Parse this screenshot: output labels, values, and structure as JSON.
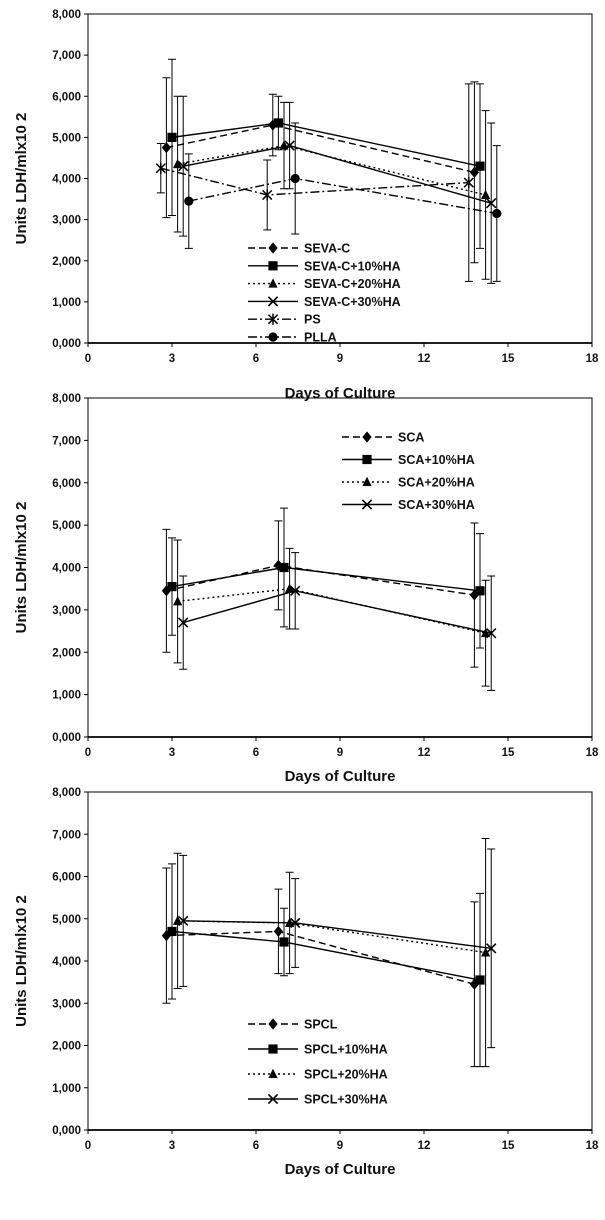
{
  "chart_data": [
    {
      "type": "line",
      "title": "",
      "xlabel": "Days of Culture",
      "ylabel": "Units LDH/mlx10 2",
      "xlim": [
        0,
        18
      ],
      "ylim": [
        0,
        8000
      ],
      "xticks": [
        "0",
        "3",
        "6",
        "9",
        "12",
        "15",
        "18"
      ],
      "yticks": [
        "0,000",
        "1,000",
        "2,000",
        "3,000",
        "4,000",
        "5,000",
        "6,000",
        "7,000",
        "8,000"
      ],
      "legend_position": "bottom-center",
      "series": [
        {
          "name": "SEVA-C",
          "marker": "diamond",
          "dash": "dashed",
          "x": [
            2.8,
            6.6,
            13.8
          ],
          "y": [
            4750,
            5300,
            4150
          ],
          "err": [
            1700,
            750,
            2200
          ]
        },
        {
          "name": "SEVA-C+10%HA",
          "marker": "square",
          "dash": "solid",
          "x": [
            3.0,
            6.8,
            14.0
          ],
          "y": [
            5000,
            5350,
            4300
          ],
          "err": [
            1900,
            650,
            2000
          ]
        },
        {
          "name": "SEVA-C+20%HA",
          "marker": "triangle",
          "dash": "dotted",
          "x": [
            3.2,
            7.0,
            14.2
          ],
          "y": [
            4350,
            4800,
            3600
          ],
          "err": [
            1650,
            1050,
            2050
          ]
        },
        {
          "name": "SEVA-C+30%HA",
          "marker": "x",
          "dash": "solid",
          "x": [
            3.4,
            7.2,
            14.4
          ],
          "y": [
            4300,
            4800,
            3400
          ],
          "err": [
            1700,
            1050,
            1950
          ]
        },
        {
          "name": "PS",
          "marker": "star",
          "dash": "dashdot",
          "x": [
            2.6,
            6.4,
            13.6
          ],
          "y": [
            4250,
            3600,
            3900
          ],
          "err": [
            600,
            850,
            2400
          ]
        },
        {
          "name": "PLLA",
          "marker": "circle",
          "dash": "dashdot",
          "x": [
            3.6,
            7.4,
            14.6
          ],
          "y": [
            3450,
            4000,
            3150
          ],
          "err": [
            1150,
            1350,
            1650
          ]
        }
      ]
    },
    {
      "type": "line",
      "title": "",
      "xlabel": "Days of Culture",
      "ylabel": "Units LDH/mlx10 2",
      "xlim": [
        0,
        18
      ],
      "ylim": [
        0,
        8000
      ],
      "xticks": [
        "0",
        "3",
        "6",
        "9",
        "12",
        "15",
        "18"
      ],
      "yticks": [
        "0,000",
        "1,000",
        "2,000",
        "3,000",
        "4,000",
        "5,000",
        "6,000",
        "7,000",
        "8,000"
      ],
      "legend_position": "top-right",
      "series": [
        {
          "name": "SCA",
          "marker": "diamond",
          "dash": "dashed",
          "x": [
            2.8,
            6.8,
            13.8
          ],
          "y": [
            3450,
            4050,
            3350
          ],
          "err": [
            1450,
            1050,
            1700
          ]
        },
        {
          "name": "SCA+10%HA",
          "marker": "square",
          "dash": "solid",
          "x": [
            3.0,
            7.0,
            14.0
          ],
          "y": [
            3550,
            4000,
            3450
          ],
          "err": [
            1150,
            1400,
            1350
          ]
        },
        {
          "name": "SCA+20%HA",
          "marker": "triangle",
          "dash": "dotted",
          "x": [
            3.2,
            7.2,
            14.2
          ],
          "y": [
            3200,
            3500,
            2450
          ],
          "err": [
            1450,
            950,
            1250
          ]
        },
        {
          "name": "SCA+30%HA",
          "marker": "x",
          "dash": "solid",
          "x": [
            3.4,
            7.4,
            14.4
          ],
          "y": [
            2700,
            3450,
            2450
          ],
          "err": [
            1100,
            900,
            1350
          ]
        }
      ]
    },
    {
      "type": "line",
      "title": "",
      "xlabel": "Days of Culture",
      "ylabel": "Units LDH/mlx10 2",
      "xlim": [
        0,
        18
      ],
      "ylim": [
        0,
        8000
      ],
      "xticks": [
        "0",
        "3",
        "6",
        "9",
        "12",
        "15",
        "18"
      ],
      "yticks": [
        "0,000",
        "1,000",
        "2,000",
        "3,000",
        "4,000",
        "5,000",
        "6,000",
        "7,000",
        "8,000"
      ],
      "legend_position": "bottom-center",
      "series": [
        {
          "name": "SPCL",
          "marker": "diamond",
          "dash": "dashed",
          "x": [
            2.8,
            6.8,
            13.8
          ],
          "y": [
            4600,
            4700,
            3450
          ],
          "err": [
            1600,
            1000,
            1950
          ]
        },
        {
          "name": "SPCL+10%HA",
          "marker": "square",
          "dash": "solid",
          "x": [
            3.0,
            7.0,
            14.0
          ],
          "y": [
            4700,
            4450,
            3550
          ],
          "err": [
            1600,
            800,
            2050
          ]
        },
        {
          "name": "SPCL+20%HA",
          "marker": "triangle",
          "dash": "dotted",
          "x": [
            3.2,
            7.2,
            14.2
          ],
          "y": [
            4950,
            4900,
            4200
          ],
          "err": [
            1600,
            1200,
            2700
          ]
        },
        {
          "name": "SPCL+30%HA",
          "marker": "x",
          "dash": "solid",
          "x": [
            3.4,
            7.4,
            14.4
          ],
          "y": [
            4950,
            4900,
            4300
          ],
          "err": [
            1550,
            1050,
            2350
          ]
        }
      ]
    }
  ]
}
